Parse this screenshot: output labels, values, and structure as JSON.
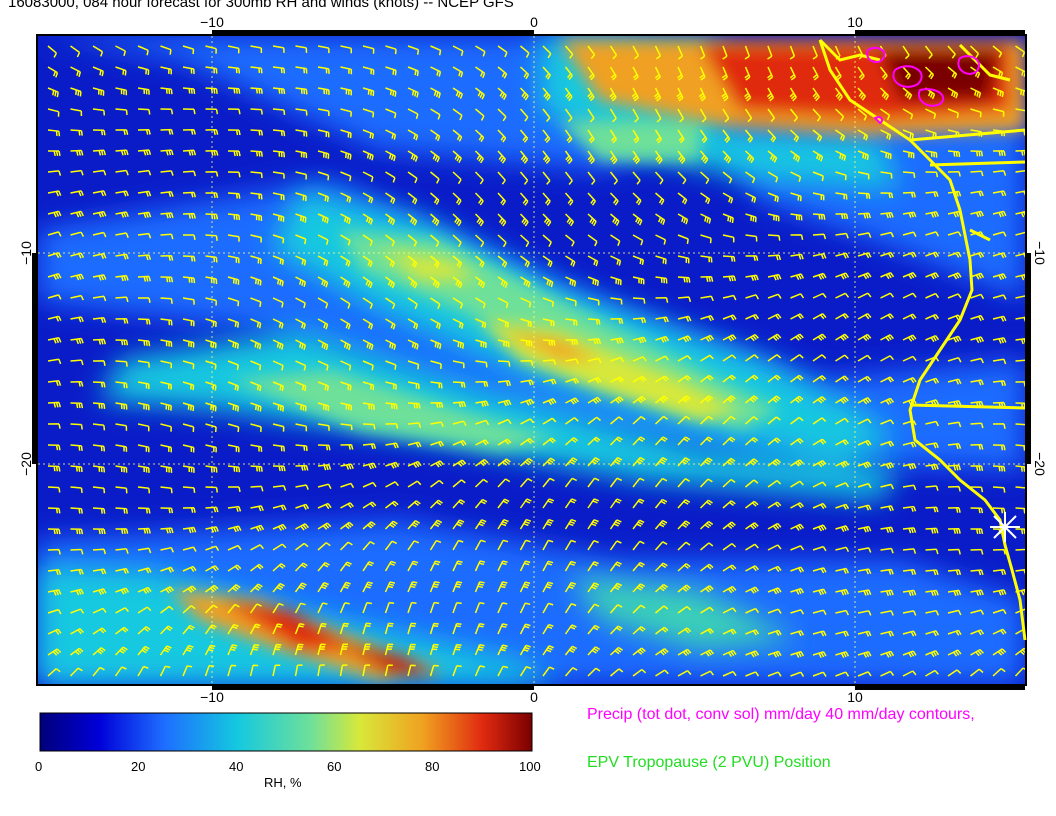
{
  "title": "16083000, 084 hour forecast for 300mb RH and winds (knots) -- NCEP GFS",
  "x_axis": {
    "tick_labels": [
      "−10",
      "0",
      "10"
    ]
  },
  "y_axis": {
    "tick_labels": [
      "−10",
      "−20"
    ]
  },
  "colorbar": {
    "label": "RH, %",
    "ticks": [
      "0",
      "20",
      "40",
      "60",
      "80",
      "100"
    ],
    "colors": [
      "#00007a",
      "#0000d8",
      "#1e6cff",
      "#14c8e0",
      "#6ee09a",
      "#d8e83a",
      "#f0a020",
      "#e02a10",
      "#7a0000"
    ]
  },
  "legend": {
    "precip": "Precip (tot dot, conv sol) mm/day 40 mm/day contours,",
    "precip_color": "#ff00ff",
    "epv": "EPV Tropopause (2 PVU) Position",
    "epv_color": "#22dd22"
  },
  "barb_color": "#ffff00",
  "coast_color": "#ffff00"
}
